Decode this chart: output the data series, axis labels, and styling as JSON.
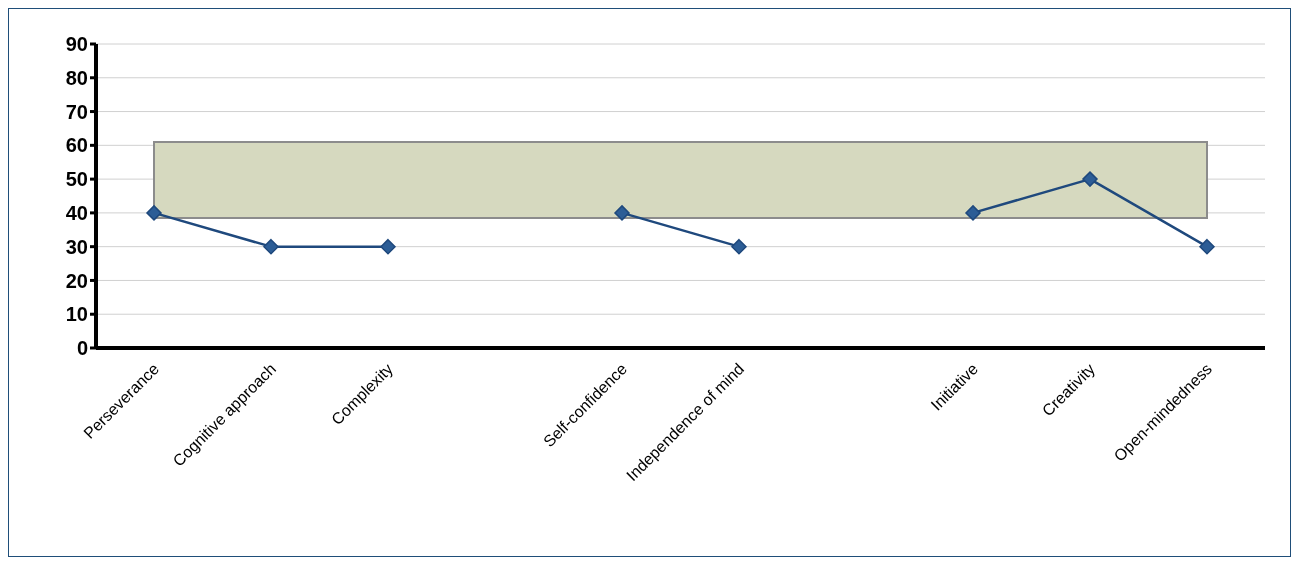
{
  "chart_data": {
    "type": "line",
    "categories": [
      "Perseverance",
      "Cognitive approach",
      "Complexity",
      null,
      "Self-confidence",
      "Independence of mind",
      null,
      "Initiative",
      "Creativity",
      "Open-mindedness"
    ],
    "series": [
      {
        "color": "#1f497d",
        "values": [
          40,
          30,
          30,
          null,
          40,
          30,
          null,
          40,
          50,
          30
        ]
      }
    ],
    "ylim": [
      0,
      90
    ],
    "yticks": [
      0,
      10,
      20,
      30,
      40,
      50,
      60,
      70,
      80,
      90
    ],
    "bands": [
      {
        "axis": "y",
        "from": 38.5,
        "to": 61,
        "color": "#d6d9bf"
      }
    ],
    "grid": "y",
    "marker": "diamond",
    "line_style": "solid"
  }
}
